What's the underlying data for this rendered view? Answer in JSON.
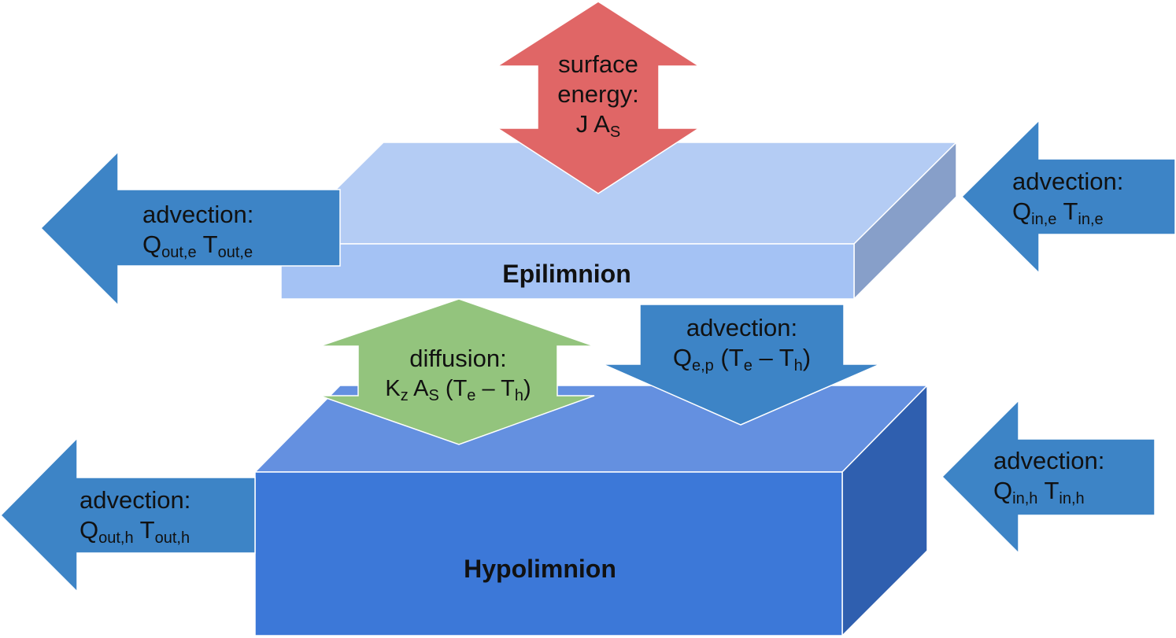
{
  "layers": {
    "epilimnion": {
      "label": "Epilimnion"
    },
    "hypolimnion": {
      "label": "Hypolimnion"
    }
  },
  "fluxes": {
    "surface_energy": {
      "line1": "surface",
      "line2": "energy:",
      "line3_main": "J A",
      "line3_sub": "S"
    },
    "advection_out_e": {
      "title": "advection:",
      "q": "Q",
      "q_sub": "out,e",
      "t": "T",
      "t_sub": "out,e"
    },
    "advection_in_e": {
      "title": "advection:",
      "q": "Q",
      "q_sub": "in,e",
      "t": "T",
      "t_sub": "in,e"
    },
    "diffusion": {
      "title": "diffusion:",
      "k": "K",
      "k_sub": "z",
      "a": "A",
      "a_sub": "S",
      "paren_open": "(T",
      "te_sub": "e",
      "minus": "– T",
      "th_sub": "h",
      "paren_close": ")"
    },
    "advection_down": {
      "title": "advection:",
      "q": "Q",
      "q_sub": "e,p",
      "paren_open": "(T",
      "te_sub": "e",
      "minus": "– T",
      "th_sub": "h",
      "paren_close": ")"
    },
    "advection_out_h": {
      "title": "advection:",
      "q": "Q",
      "q_sub": "out,h",
      "t": "T",
      "t_sub": "out,h"
    },
    "advection_in_h": {
      "title": "advection:",
      "q": "Q",
      "q_sub": "in,h",
      "t": "T",
      "t_sub": "in,h"
    }
  },
  "colors": {
    "epi_top": "#b4ccf4",
    "epi_front": "#a4c2f4",
    "epi_side": "#879fc9",
    "hypo_top": "#6490e0",
    "hypo_front": "#3c78d8",
    "hypo_side": "#2f5faf",
    "advection_arrow": "#3d84c6",
    "surface_arrow": "#e06666",
    "diffusion_arrow": "#93c47d"
  }
}
